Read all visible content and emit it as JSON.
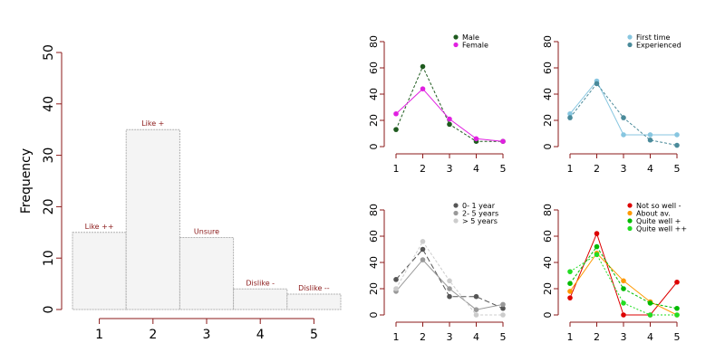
{
  "chart_data": [
    {
      "type": "bar",
      "ylabel": "Frequency",
      "categories": [
        "1",
        "2",
        "3",
        "4",
        "5"
      ],
      "values": [
        15,
        35,
        14,
        4,
        3
      ],
      "bar_labels": [
        "Like ++",
        "Like +",
        "Unsure",
        "Dislike -",
        "Dislike --"
      ],
      "ylim": [
        0,
        50
      ],
      "yticks": [
        0,
        10,
        20,
        30,
        40,
        50
      ],
      "bar_fill": "#f4f4f4",
      "bar_stroke": "#b0b0b0",
      "label_color": "#8b1a1a",
      "axis_color": "#8b1a1a"
    },
    {
      "type": "line",
      "x": [
        1,
        2,
        3,
        4,
        5
      ],
      "ylim": [
        0,
        80
      ],
      "yticks": [
        0,
        20,
        40,
        60,
        80
      ],
      "legend_position": "top-right",
      "series": [
        {
          "name": "Male",
          "values": [
            13,
            61,
            17,
            4,
            4
          ],
          "color": "#1e5a1e",
          "dash": "3,2"
        },
        {
          "name": "Female",
          "values": [
            25,
            44,
            21,
            6,
            4
          ],
          "color": "#e020e0",
          "dash": ""
        }
      ]
    },
    {
      "type": "line",
      "x": [
        1,
        2,
        3,
        4,
        5
      ],
      "ylim": [
        0,
        80
      ],
      "yticks": [
        0,
        20,
        40,
        60,
        80
      ],
      "legend_position": "top-right",
      "series": [
        {
          "name": "First time",
          "values": [
            25,
            50,
            9,
            9,
            9
          ],
          "color": "#87c6e0",
          "dash": ""
        },
        {
          "name": "Experienced",
          "values": [
            22,
            48,
            22,
            5,
            1
          ],
          "color": "#4a8a9a",
          "dash": "3,2"
        }
      ]
    },
    {
      "type": "line",
      "x": [
        1,
        2,
        3,
        4,
        5
      ],
      "ylim": [
        0,
        80
      ],
      "yticks": [
        0,
        20,
        40,
        60,
        80
      ],
      "legend_position": "top-right",
      "series": [
        {
          "name": "0- 1 year",
          "values": [
            27,
            50,
            14,
            14,
            5
          ],
          "color": "#555555",
          "dash": "6,3"
        },
        {
          "name": "2- 5 years",
          "values": [
            18,
            42,
            20,
            4,
            8
          ],
          "color": "#999999",
          "dash": ""
        },
        {
          "name": "> 5 years",
          "values": [
            20,
            56,
            26,
            0,
            0
          ],
          "color": "#cccccc",
          "dash": "3,2"
        }
      ]
    },
    {
      "type": "line",
      "x": [
        1,
        2,
        3,
        4,
        5
      ],
      "ylim": [
        0,
        80
      ],
      "yticks": [
        0,
        20,
        40,
        60,
        80
      ],
      "legend_position": "top-right",
      "series": [
        {
          "name": "Not so well -",
          "values": [
            13,
            62,
            0,
            0,
            25
          ],
          "color": "#dd0000",
          "dash": ""
        },
        {
          "name": "About av.",
          "values": [
            18,
            47,
            26,
            10,
            0
          ],
          "color": "#ff9900",
          "dash": ""
        },
        {
          "name": "Quite well +",
          "values": [
            24,
            52,
            20,
            9,
            5
          ],
          "color": "#00bb00",
          "dash": "3,2"
        },
        {
          "name": "Quite well ++",
          "values": [
            33,
            46,
            9,
            0,
            0
          ],
          "color": "#22dd22",
          "dash": "2,2"
        }
      ]
    }
  ]
}
